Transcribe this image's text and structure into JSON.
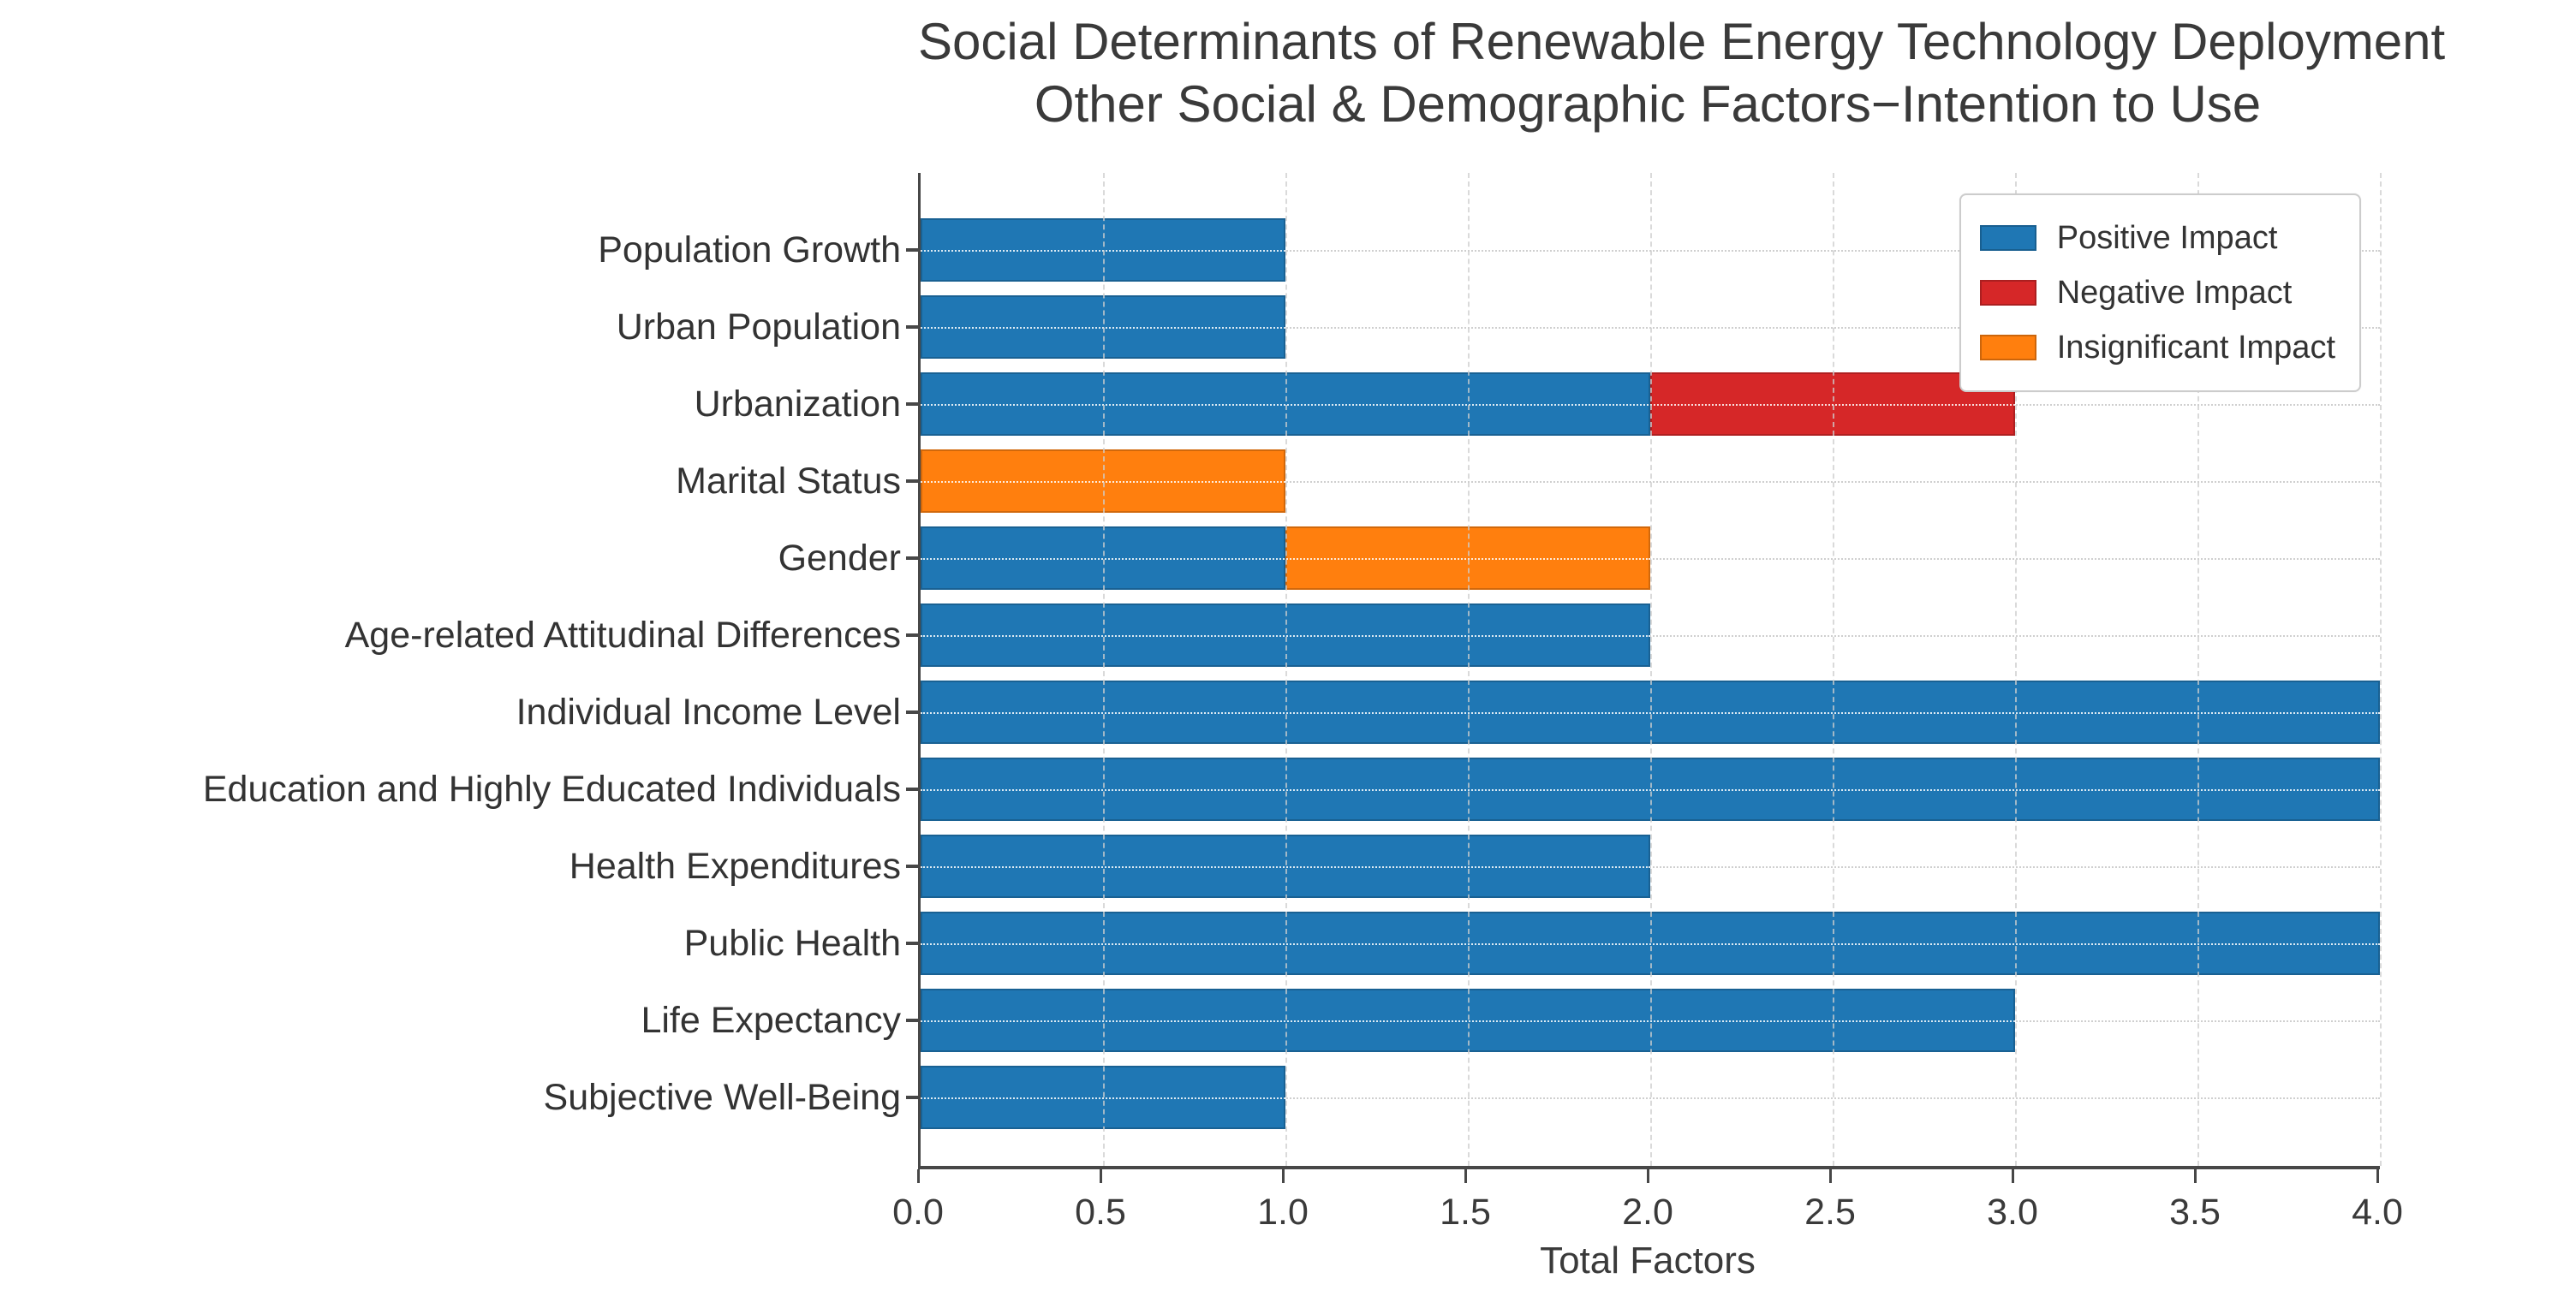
{
  "chart_data": {
    "type": "bar",
    "orientation": "horizontal",
    "stacked": true,
    "title": "Social Determinants of Renewable Energy Technology Deployment",
    "subtitle": "Other Social & Demographic Factors−Intention to Use",
    "xlabel": "Total Factors",
    "xlim": [
      0.0,
      4.0
    ],
    "xticks": [
      "0.0",
      "0.5",
      "1.0",
      "1.5",
      "2.0",
      "2.5",
      "3.0",
      "3.5",
      "4.0"
    ],
    "grid": true,
    "legend_position": "upper right",
    "categories": [
      "Population Growth",
      "Urban Population",
      "Urbanization",
      "Marital Status",
      "Gender",
      "Age-related Attitudinal Differences",
      "Individual Income Level",
      "Education and Highly Educated Individuals",
      "Health Expenditures",
      "Public Health",
      "Life Expectancy",
      "Subjective Well-Being"
    ],
    "series": [
      {
        "name": "Positive Impact",
        "color": "#1f77b4",
        "values": [
          1,
          1,
          2,
          0,
          1,
          2,
          4,
          4,
          2,
          4,
          3,
          1
        ]
      },
      {
        "name": "Negative Impact",
        "color": "#d62728",
        "values": [
          0,
          0,
          1,
          0,
          0,
          0,
          0,
          0,
          0,
          0,
          0,
          0
        ]
      },
      {
        "name": "Insignificant Impact",
        "color": "#ff7f0e",
        "values": [
          0,
          0,
          0,
          1,
          1,
          0,
          0,
          0,
          0,
          0,
          0,
          0
        ]
      }
    ],
    "totals": [
      1,
      1,
      3,
      1,
      2,
      2,
      4,
      4,
      2,
      4,
      3,
      1
    ],
    "colors": {
      "positive": "#1f77b4",
      "negative": "#d62728",
      "insignificant": "#ff7f0e",
      "spine": "#474747",
      "text": "#333333",
      "grid": "#cfcfcf"
    }
  }
}
